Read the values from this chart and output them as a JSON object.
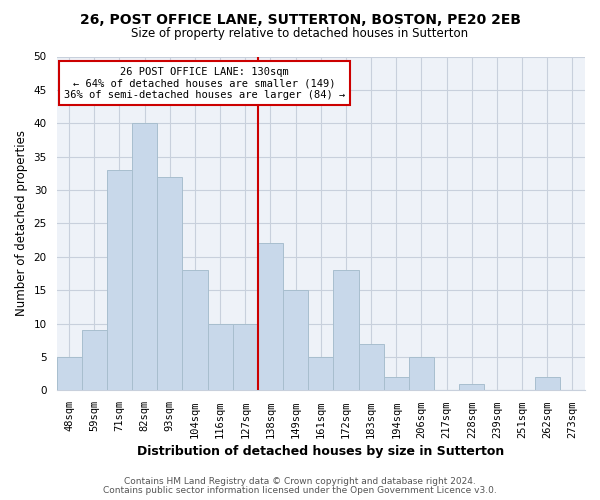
{
  "title1": "26, POST OFFICE LANE, SUTTERTON, BOSTON, PE20 2EB",
  "title2": "Size of property relative to detached houses in Sutterton",
  "xlabel": "Distribution of detached houses by size in Sutterton",
  "ylabel": "Number of detached properties",
  "footer1": "Contains HM Land Registry data © Crown copyright and database right 2024.",
  "footer2": "Contains public sector information licensed under the Open Government Licence v3.0.",
  "bar_labels": [
    "48sqm",
    "59sqm",
    "71sqm",
    "82sqm",
    "93sqm",
    "104sqm",
    "116sqm",
    "127sqm",
    "138sqm",
    "149sqm",
    "161sqm",
    "172sqm",
    "183sqm",
    "194sqm",
    "206sqm",
    "217sqm",
    "228sqm",
    "239sqm",
    "251sqm",
    "262sqm",
    "273sqm"
  ],
  "bar_values": [
    5,
    9,
    33,
    40,
    32,
    18,
    10,
    10,
    22,
    15,
    5,
    18,
    7,
    2,
    5,
    0,
    1,
    0,
    0,
    2,
    0
  ],
  "bar_color": "#c8d8ea",
  "bar_edge_color": "#a8bece",
  "ylim": [
    0,
    50
  ],
  "yticks": [
    0,
    5,
    10,
    15,
    20,
    25,
    30,
    35,
    40,
    45,
    50
  ],
  "vline_x": 7.5,
  "vline_color": "#cc0000",
  "annotation_title": "26 POST OFFICE LANE: 130sqm",
  "annotation_line1": "← 64% of detached houses are smaller (149)",
  "annotation_line2": "36% of semi-detached houses are larger (84) →",
  "annotation_box_facecolor": "#ffffff",
  "annotation_box_edgecolor": "#cc0000",
  "bg_color": "#ffffff",
  "plot_bg_color": "#eef2f8",
  "grid_color": "#c8d0dc",
  "title1_fontsize": 10,
  "title2_fontsize": 8.5,
  "xlabel_fontsize": 9,
  "ylabel_fontsize": 8.5,
  "tick_fontsize": 7.5,
  "footer_fontsize": 6.5
}
